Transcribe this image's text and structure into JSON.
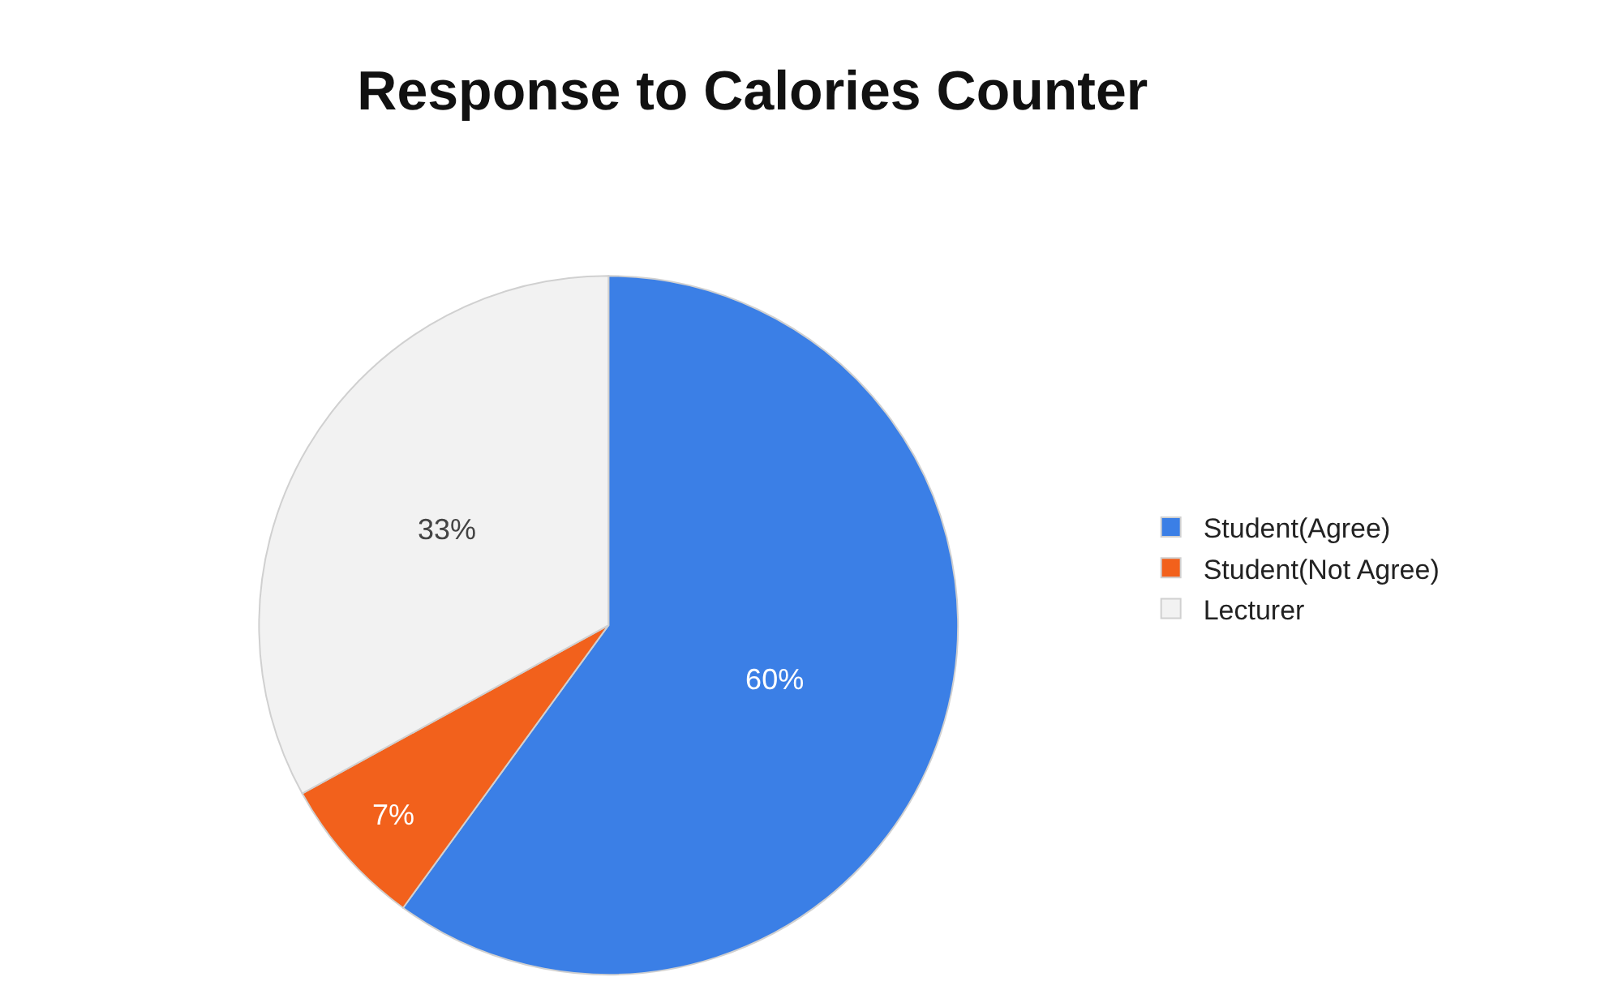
{
  "chart_data": {
    "type": "pie",
    "title": "Response to Calories Counter",
    "categories": [
      "Student(Agree)",
      "Student(Not Agree)",
      "Lecturer"
    ],
    "values": [
      60,
      7,
      33
    ],
    "colors": [
      "#3b7fe6",
      "#f2611c",
      "#f2f2f2"
    ],
    "value_labels": [
      "60%",
      "7%",
      "33%"
    ],
    "legend": "right"
  }
}
